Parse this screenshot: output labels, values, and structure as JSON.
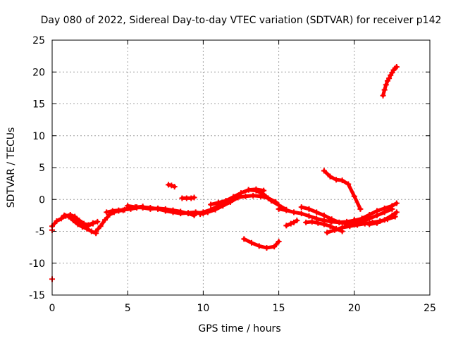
{
  "chart_data": {
    "type": "scatter",
    "title": "Day 080 of 2022, Sidereal Day-to-day VTEC variation (SDTVAR) for receiver p142",
    "xlabel": "GPS time / hours",
    "ylabel": "SDTVAR / TECUs",
    "xlim": [
      0,
      25
    ],
    "ylim": [
      -15,
      25
    ],
    "xticks": [
      0,
      5,
      10,
      15,
      20,
      25
    ],
    "yticks": [
      -15,
      -10,
      -5,
      0,
      5,
      10,
      15,
      20,
      25
    ],
    "grid": true,
    "marker": "plus",
    "color": "#ff0000",
    "series": [
      {
        "name": "s1",
        "x": [
          0.0,
          0.3,
          0.6,
          0.9,
          1.2,
          1.5,
          1.8,
          2.1,
          2.4,
          2.7,
          3.0
        ],
        "y": [
          -4.2,
          -3.4,
          -3.0,
          -2.6,
          -2.4,
          -2.7,
          -3.3,
          -3.8,
          -4.0,
          -3.7,
          -3.5
        ]
      },
      {
        "name": "s2",
        "x": [
          0.8,
          1.1,
          1.4,
          1.7,
          2.0,
          2.3,
          2.6,
          2.9
        ],
        "y": [
          -2.5,
          -2.7,
          -3.3,
          -3.9,
          -4.3,
          -4.6,
          -5.0,
          -5.3
        ]
      },
      {
        "name": "s3",
        "x": [
          1.2,
          1.5,
          1.8,
          2.1,
          2.4,
          2.7
        ],
        "y": [
          -2.6,
          -3.0,
          -3.6,
          -4.0,
          -4.1,
          -3.8
        ]
      },
      {
        "name": "s4",
        "x": [
          2.9,
          3.2,
          3.5,
          3.8,
          4.1,
          4.4,
          4.7,
          5.0,
          5.3,
          5.6,
          6.0
        ],
        "y": [
          -5.0,
          -4.2,
          -3.2,
          -2.4,
          -2.0,
          -1.8,
          -1.7,
          -1.4,
          -1.3,
          -1.2,
          -1.1
        ]
      },
      {
        "name": "s5",
        "x": [
          3.6,
          4.0,
          4.4,
          4.8,
          5.2,
          5.6,
          6.0,
          6.5,
          7.0,
          7.5,
          8.0,
          8.5,
          9.0,
          9.5,
          10.0
        ],
        "y": [
          -2.0,
          -1.8,
          -1.7,
          -1.6,
          -1.5,
          -1.3,
          -1.2,
          -1.3,
          -1.5,
          -1.8,
          -2.0,
          -2.2,
          -2.1,
          -2.0,
          -2.2
        ]
      },
      {
        "name": "s6",
        "x": [
          5.0,
          5.5,
          6.0,
          6.5,
          7.0,
          7.5,
          8.0,
          8.5,
          9.0,
          9.4
        ],
        "y": [
          -1.0,
          -1.2,
          -1.3,
          -1.5,
          -1.4,
          -1.5,
          -1.7,
          -1.9,
          -2.2,
          -2.5
        ]
      },
      {
        "name": "s7",
        "x": [
          7.7,
          7.9,
          8.1
        ],
        "y": [
          2.3,
          2.2,
          2.0
        ]
      },
      {
        "name": "s8",
        "x": [
          8.6,
          8.9,
          9.2,
          9.4
        ],
        "y": [
          0.2,
          0.2,
          0.2,
          0.3
        ]
      },
      {
        "name": "s9",
        "x": [
          9.5,
          10.0,
          10.5,
          11.0,
          11.5,
          12.0,
          12.5,
          13.0,
          13.5,
          14.0,
          14.5,
          15.0,
          15.5
        ],
        "y": [
          -2.2,
          -2.0,
          -1.6,
          -1.0,
          -0.3,
          0.4,
          1.0,
          1.5,
          1.4,
          0.8,
          -0.2,
          -0.9,
          -1.6
        ]
      },
      {
        "name": "s10",
        "x": [
          9.8,
          10.3,
          10.8,
          11.3,
          11.8,
          12.3,
          12.8,
          13.3,
          13.8,
          14.3,
          14.8
        ],
        "y": [
          -2.3,
          -2.0,
          -1.6,
          -1.0,
          -0.4,
          0.3,
          0.5,
          0.6,
          0.5,
          0.2,
          -0.4
        ]
      },
      {
        "name": "s11",
        "x": [
          10.5,
          11.0,
          11.5,
          12.0,
          12.5,
          13.0,
          13.5,
          14.0
        ],
        "y": [
          -0.8,
          -0.5,
          -0.2,
          0.4,
          1.0,
          1.5,
          1.6,
          1.4
        ]
      },
      {
        "name": "s12",
        "x": [
          12.7,
          13.2,
          13.7,
          14.2,
          14.7,
          15.0
        ],
        "y": [
          -6.2,
          -6.8,
          -7.3,
          -7.6,
          -7.4,
          -6.6
        ]
      },
      {
        "name": "s13",
        "x": [
          15.0,
          15.5,
          16.0,
          16.5,
          17.0,
          17.5,
          18.0,
          18.5,
          19.0,
          19.5,
          20.0,
          20.5,
          21.0
        ],
        "y": [
          -1.5,
          -1.7,
          -2.0,
          -2.2,
          -2.6,
          -3.0,
          -3.3,
          -3.5,
          -3.6,
          -3.5,
          -3.3,
          -3.0,
          -2.8
        ]
      },
      {
        "name": "s14",
        "x": [
          15.5,
          15.8,
          16.0,
          16.2
        ],
        "y": [
          -4.1,
          -3.8,
          -3.6,
          -3.3
        ]
      },
      {
        "name": "s15",
        "x": [
          16.5,
          17.0,
          17.5,
          18.0,
          18.5,
          19.0,
          19.5,
          20.0,
          20.5,
          21.0,
          21.5,
          22.0,
          22.5
        ],
        "y": [
          -1.2,
          -1.5,
          -2.0,
          -2.5,
          -3.1,
          -3.6,
          -3.8,
          -3.9,
          -3.5,
          -3.0,
          -2.5,
          -2.0,
          -1.5
        ]
      },
      {
        "name": "s16",
        "x": [
          16.8,
          17.2,
          17.6,
          18.0,
          18.4,
          18.8,
          19.2
        ],
        "y": [
          -3.6,
          -3.5,
          -3.7,
          -3.9,
          -4.2,
          -4.6,
          -5.0
        ]
      },
      {
        "name": "s17",
        "x": [
          18.0,
          18.4,
          18.8,
          19.2,
          19.6,
          20.0,
          20.4
        ],
        "y": [
          4.5,
          3.6,
          3.1,
          3.0,
          2.4,
          0.5,
          -1.5
        ]
      },
      {
        "name": "s18",
        "x": [
          18.2,
          18.7,
          19.2,
          19.7,
          20.2,
          20.7,
          21.2,
          21.7,
          22.2,
          22.7
        ],
        "y": [
          -5.2,
          -4.8,
          -4.4,
          -4.2,
          -4.0,
          -3.8,
          -3.6,
          -3.4,
          -3.1,
          -2.7
        ]
      },
      {
        "name": "s19",
        "x": [
          19.5,
          20.0,
          20.5,
          21.0,
          21.5,
          22.0,
          22.5,
          22.8
        ],
        "y": [
          -4.0,
          -3.6,
          -3.0,
          -2.4,
          -1.8,
          -1.4,
          -1.0,
          -0.6
        ]
      },
      {
        "name": "s20",
        "x": [
          20.0,
          20.5,
          21.0,
          21.5,
          22.0,
          22.5,
          22.8
        ],
        "y": [
          -3.2,
          -3.6,
          -3.9,
          -3.7,
          -3.2,
          -2.5,
          -2.0
        ]
      },
      {
        "name": "s21",
        "x": [
          21.9,
          22.0,
          22.1,
          22.2,
          22.3,
          22.4,
          22.5,
          22.6,
          22.7,
          22.8
        ],
        "y": [
          16.3,
          17.2,
          18.0,
          18.6,
          19.0,
          19.5,
          19.9,
          20.3,
          20.6,
          20.8
        ]
      },
      {
        "name": "s22",
        "x": [
          0.0,
          0.0
        ],
        "y": [
          -12.5,
          -4.8
        ]
      }
    ]
  }
}
